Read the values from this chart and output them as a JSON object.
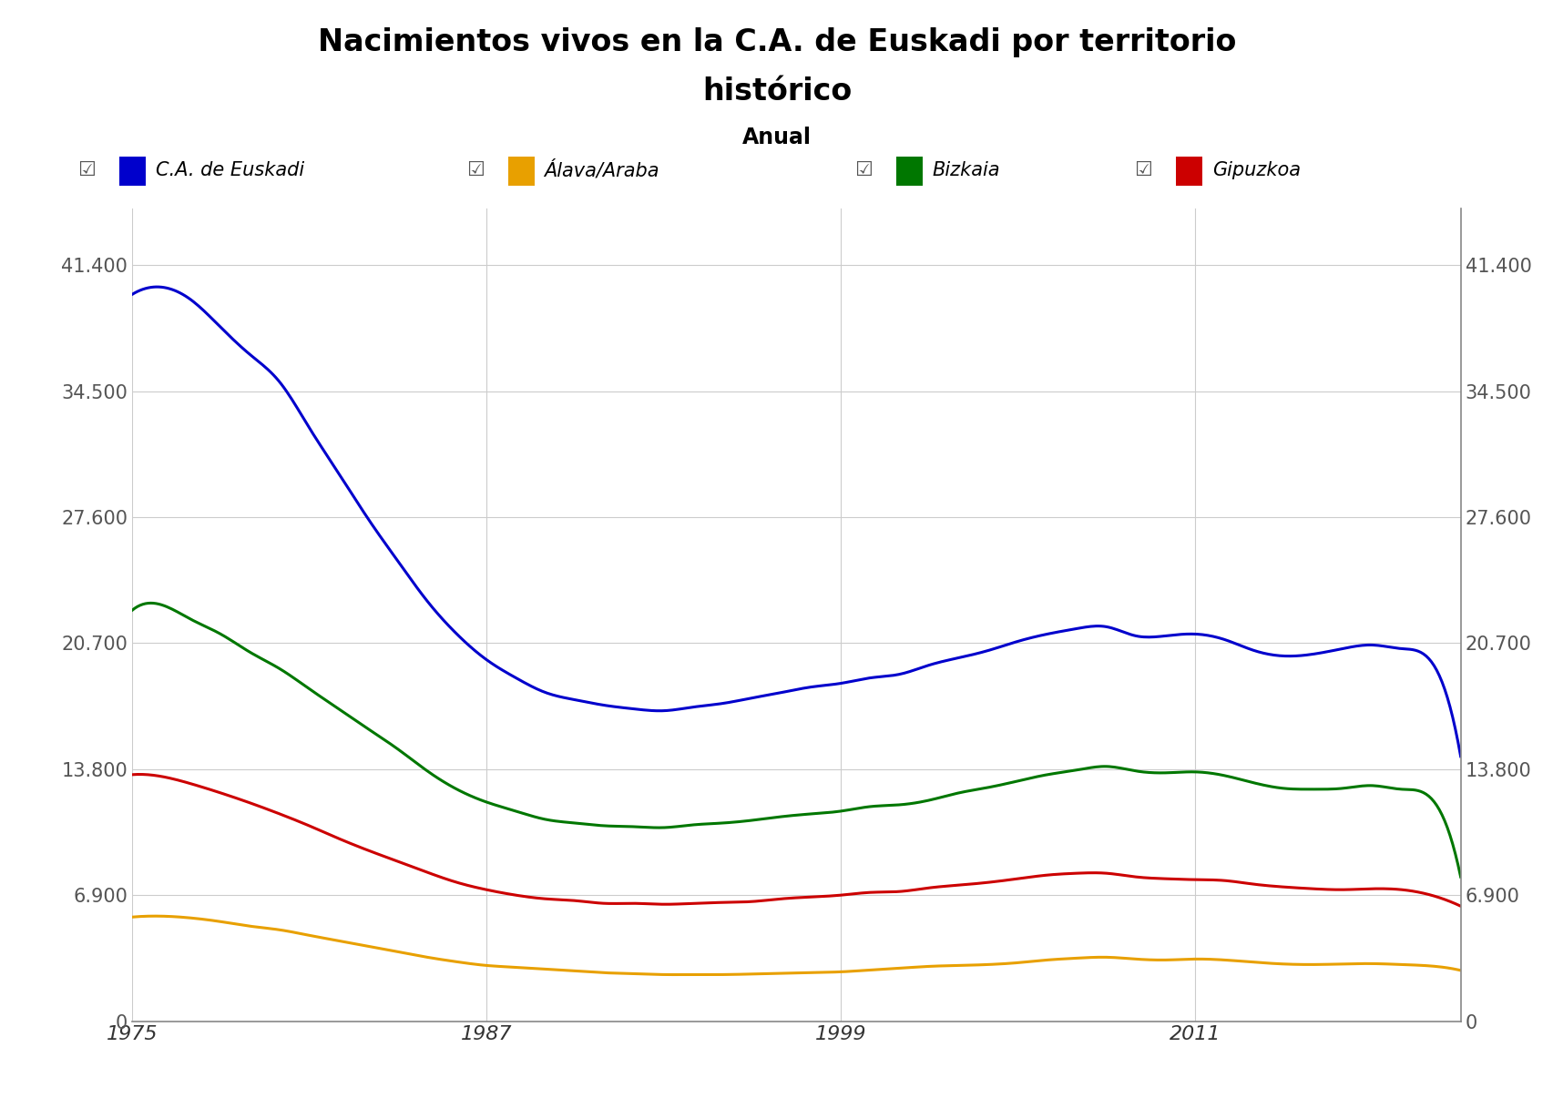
{
  "title_line1": "Nacimientos vivos en la C.A. de Euskadi por territorio",
  "title_line2": "histórico",
  "subtitle": "Anual",
  "background_color": "#ffffff",
  "plot_bg_color": "#ffffff",
  "years": [
    1975,
    1976,
    1977,
    1978,
    1979,
    1980,
    1981,
    1982,
    1983,
    1984,
    1985,
    1986,
    1987,
    1988,
    1989,
    1990,
    1991,
    1992,
    1993,
    1994,
    1995,
    1996,
    1997,
    1998,
    1999,
    2000,
    2001,
    2002,
    2003,
    2004,
    2005,
    2006,
    2007,
    2008,
    2009,
    2010,
    2011,
    2012,
    2013,
    2014,
    2015,
    2016,
    2017,
    2018,
    2019,
    2020
  ],
  "euskadi": [
    39800,
    40200,
    39500,
    38000,
    36500,
    35000,
    32500,
    30000,
    27500,
    25200,
    23000,
    21200,
    19800,
    18800,
    18000,
    17600,
    17300,
    17100,
    17000,
    17200,
    17400,
    17700,
    18000,
    18300,
    18500,
    18800,
    19000,
    19500,
    19900,
    20300,
    20800,
    21200,
    21500,
    21600,
    21100,
    21100,
    21200,
    20900,
    20300,
    20000,
    20100,
    20400,
    20600,
    20400,
    19700,
    14500
  ],
  "alava": [
    5700,
    5750,
    5650,
    5450,
    5200,
    5000,
    4700,
    4400,
    4100,
    3800,
    3500,
    3250,
    3050,
    2950,
    2850,
    2750,
    2650,
    2600,
    2550,
    2550,
    2550,
    2580,
    2620,
    2660,
    2700,
    2800,
    2900,
    3000,
    3050,
    3100,
    3200,
    3350,
    3450,
    3500,
    3400,
    3350,
    3400,
    3350,
    3230,
    3130,
    3100,
    3130,
    3150,
    3100,
    3020,
    2780
  ],
  "bizkaia": [
    22500,
    22800,
    22000,
    21200,
    20200,
    19300,
    18200,
    17100,
    16000,
    14900,
    13700,
    12700,
    12000,
    11500,
    11050,
    10850,
    10700,
    10650,
    10600,
    10750,
    10850,
    11000,
    11200,
    11350,
    11500,
    11750,
    11850,
    12100,
    12500,
    12800,
    13150,
    13500,
    13750,
    13950,
    13700,
    13600,
    13650,
    13450,
    13050,
    12750,
    12700,
    12750,
    12900,
    12700,
    12200,
    7900
  ],
  "gipuzkoa": [
    13500,
    13400,
    13000,
    12500,
    11950,
    11350,
    10700,
    10000,
    9350,
    8750,
    8150,
    7600,
    7200,
    6900,
    6700,
    6600,
    6450,
    6450,
    6400,
    6450,
    6500,
    6550,
    6700,
    6800,
    6900,
    7050,
    7100,
    7300,
    7450,
    7600,
    7800,
    8000,
    8100,
    8100,
    7900,
    7800,
    7750,
    7700,
    7500,
    7350,
    7250,
    7200,
    7250,
    7200,
    6900,
    6300
  ],
  "yticks": [
    0,
    6900,
    13800,
    20700,
    27600,
    34500,
    41400
  ],
  "ytick_labels": [
    "0",
    "6.900",
    "13.800",
    "20.700",
    "27.600",
    "34.500",
    "41.400"
  ],
  "xticks": [
    1975,
    1987,
    1999,
    2011
  ],
  "ylim": [
    0,
    44500
  ],
  "xlim_end": 2020,
  "colors": {
    "euskadi": "#0000cc",
    "alava": "#e8a000",
    "bizkaia": "#007700",
    "gipuzkoa": "#cc0000"
  },
  "legend_labels": [
    "C.A. de Euskadi",
    "Álava/Araba",
    "Bizkaia",
    "Gipuzkoa"
  ],
  "grid_color": "#cccccc",
  "axis_color": "#888888",
  "title_fontsize": 24,
  "subtitle_fontsize": 17,
  "tick_fontsize": 15,
  "legend_fontsize": 15
}
